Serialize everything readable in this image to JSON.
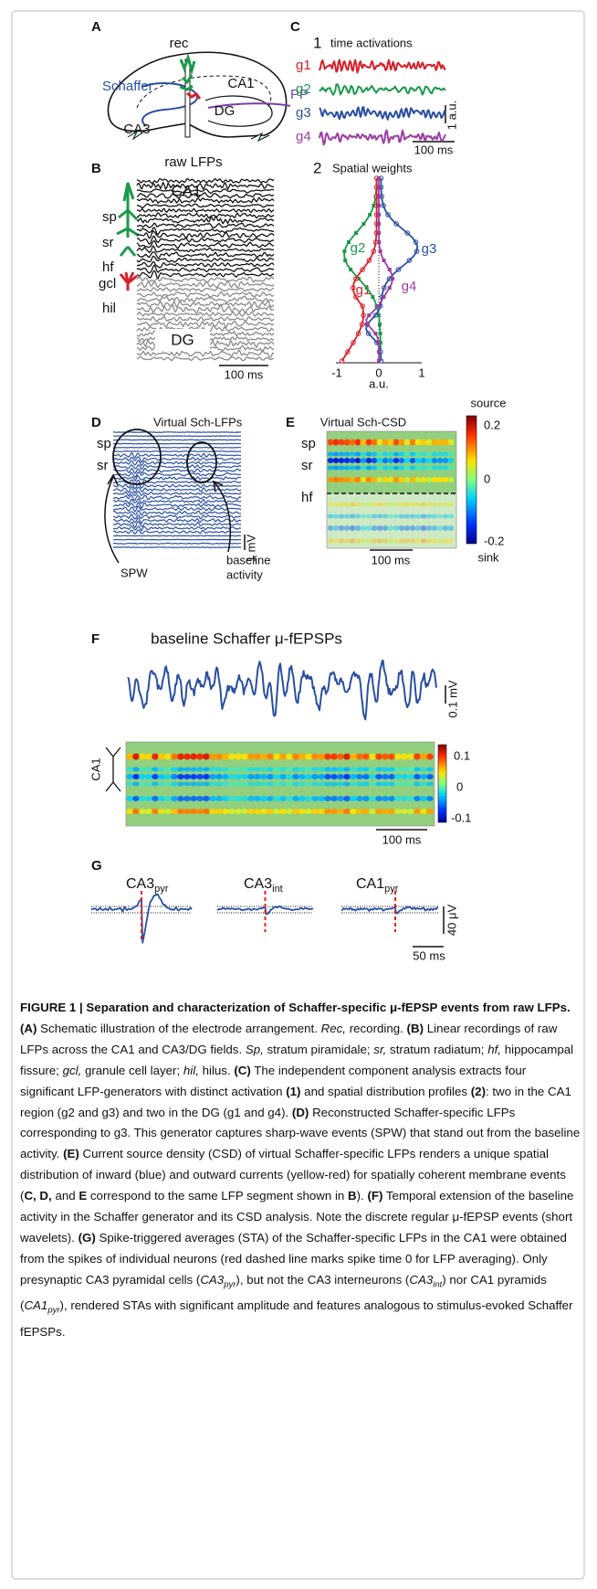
{
  "figure": {
    "panel_a": {
      "letter": "A",
      "rec": "rec",
      "ca1": "CA1",
      "schaffer": "Schaffer",
      "dg": "DG",
      "pp": "PP",
      "ca3": "CA3"
    },
    "panel_b": {
      "letter": "B",
      "title": "raw LFPs",
      "ca1": "CA1",
      "layers": [
        "sp",
        "sr",
        "hf",
        "gcl",
        "hil"
      ],
      "dg": "DG",
      "scale_time": "100 ms"
    },
    "panel_c": {
      "letter": "C",
      "sub1_number": "1",
      "sub1_title": "time activations",
      "generators": [
        "g1",
        "g2",
        "g3",
        "g4"
      ],
      "scale_amp": "1 a.u.",
      "scale_time": "100 ms",
      "sub2_number": "2",
      "sub2_title": "Spatial weights",
      "weight_labels": [
        "g2",
        "g3",
        "g1",
        "g4"
      ],
      "x_ticks": [
        "-1",
        "0",
        "1"
      ],
      "x_label": "a.u."
    },
    "panel_d": {
      "letter": "D",
      "title": "Virtual Sch-LFPs",
      "layers": [
        "sp",
        "sr"
      ],
      "spw": "SPW",
      "baseline": [
        "baseline",
        "activity"
      ],
      "scale_amp": "1 mV"
    },
    "panel_e": {
      "letter": "E",
      "title": "Virtual Sch-CSD",
      "source": "source",
      "sink": "sink",
      "colorbar_ticks": [
        "0.2",
        "0",
        "-0.2"
      ],
      "layers": [
        "sp",
        "sr",
        "hf"
      ],
      "scale_time": "100 ms"
    },
    "panel_f": {
      "letter": "F",
      "title": "baseline Schaffer μ-fEPSPs",
      "scale_amp": "0.1 mV",
      "region": "CA1",
      "colorbar_ticks": [
        "0.1",
        "0",
        "-0.1"
      ],
      "scale_time": "100 ms"
    },
    "panel_g": {
      "letter": "G",
      "cells": [
        {
          "base": "CA3",
          "sub": "pyr"
        },
        {
          "base": "CA3",
          "sub": "int"
        },
        {
          "base": "CA1",
          "sub": "pyr"
        }
      ],
      "scale_amp": "40 μV",
      "scale_time": "50 ms"
    }
  },
  "caption": {
    "runs": [
      "FIGURE 1 | Separation and characterization of Schaffer-specific μ-fEPSP events from raw LFPs.",
      "(A)",
      "Schematic illustration of the electrode arrangement.",
      "Rec,",
      "recording.",
      "(B)",
      "Linear recordings of raw LFPs across the CA1 and CA3/DG fields.",
      "Sp,",
      "stratum piramidale;",
      "sr,",
      "stratum radiatum;",
      "hf,",
      "hippocampal fissure;",
      "gcl,",
      "granule cell layer;",
      "hil,",
      "hilus.",
      "(C)",
      "The independent component analysis extracts four significant LFP-generators with distinct activation",
      "(1)",
      "and spatial distribution profiles",
      "(2)",
      ": two in the CA1 region (g2 and g3) and two in the DG (g1 and g4).",
      "(D)",
      "Reconstructed Schaffer-specific LFPs corresponding to g3. This generator captures sharp-wave events (SPW) that stand out from the baseline activity.",
      "(E)",
      "Current source density (CSD) of virtual Schaffer-specific LFPs renders a unique spatial distribution of inward (blue) and outward currents (yellow-red) for spatially coherent membrane events (",
      "C, D,",
      "and",
      "E",
      "correspond to the same LFP segment shown in",
      "B",
      ").",
      "(F)",
      "Temporal extension of the baseline activity in the Schaffer generator and its CSD analysis. Note the discrete regular μ-fEPSP events (short wavelets).",
      "(G)",
      "Spike-triggered averages (STA) of the Schaffer-specific LFPs in the CA1 were obtained from the spikes of individual neurons (red dashed line marks spike time 0 for LFP averaging). Only presynaptic CA3 pyramidal cells (",
      "CA3",
      "pyr",
      "), but not the CA3 interneurons (",
      "CA3",
      "int",
      ") nor CA1 pyramids (",
      "CA1",
      "pyr",
      "), rendered STAs with significant amplitude and features analogous to stimulus-evoked Schaffer fEPSPs."
    ]
  }
}
